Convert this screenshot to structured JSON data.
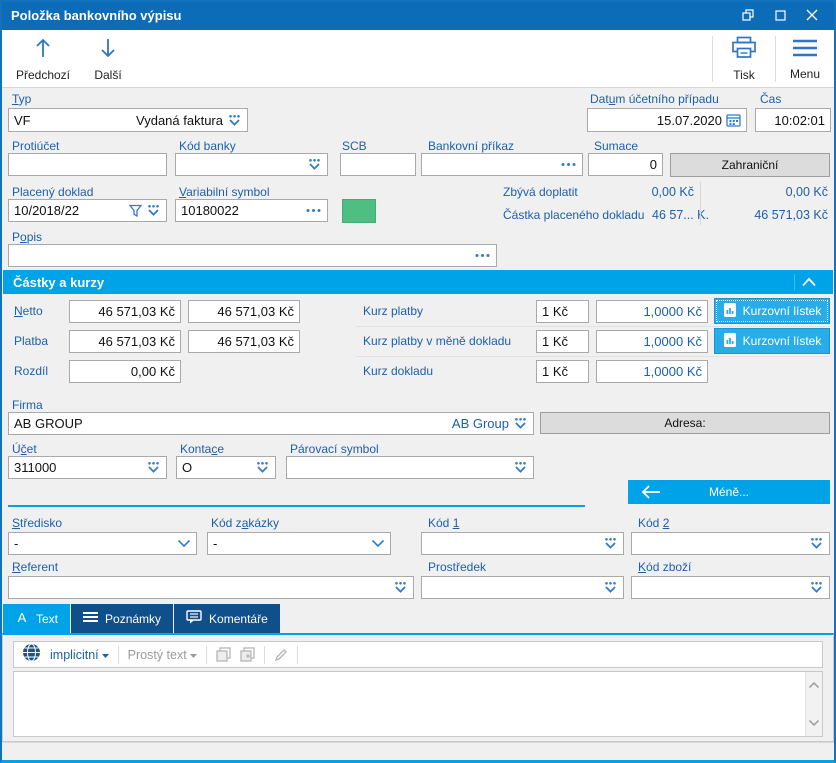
{
  "window": {
    "title": "Položka bankovního výpisu"
  },
  "toolbar": {
    "prev_label": "Předchozí",
    "next_label": "Další",
    "print_label": "Tisk",
    "menu_label": "Menu"
  },
  "form": {
    "typ": {
      "label": "&Typ",
      "code": "VF",
      "name": "Vydaná faktura"
    },
    "datum": {
      "label": "Dat&um účetního případu",
      "value": "15.07.2020"
    },
    "cas": {
      "label": "Čas",
      "value": "10:02:01"
    },
    "protiucet": {
      "label": "Protiúčet",
      "value": ""
    },
    "kod_banky": {
      "label": "Kód banky",
      "value": ""
    },
    "scb": {
      "label": "SCB",
      "value": ""
    },
    "bankovni_prikaz": {
      "label": "Bankovní příkaz",
      "value": ""
    },
    "sumace": {
      "label": "Sumace",
      "value": "0"
    },
    "zahranici_button": "Zahraniční",
    "placeny_doklad": {
      "label": "Placený doklad",
      "value": "10/2018/22"
    },
    "variabilni_symbol": {
      "label": "&Variabilní symbol",
      "value": "10180022"
    },
    "zbyva_doplatit": {
      "label": "Zbývá doplatit",
      "value": "0,00 Kč",
      "value_right": "0,00 Kč"
    },
    "castka_placeneho": {
      "label": "Částka placeného dokladu",
      "value": "46 57... K.",
      "value_right": "46 571,03 Kč"
    },
    "popis": {
      "label": "P&opis",
      "value": ""
    }
  },
  "amounts": {
    "section_title": "Částky a kurzy",
    "netto": {
      "label": "&Netto",
      "value1": "46 571,03 Kč",
      "value2": "46 571,03 Kč"
    },
    "platba": {
      "label": "Platba",
      "value1": "46 571,03 Kč",
      "value2": "46 571,03 Kč"
    },
    "rozdil": {
      "label": "Rozdíl",
      "value": "0,00 Kč"
    },
    "kurz_platby": {
      "label": "Kurz platby",
      "unit": "1 Kč",
      "rate": "1,0000 Kč"
    },
    "kurz_platby_mena": {
      "label": "Kurz platby v měně dokladu",
      "unit": "1 Kč",
      "rate": "1,0000 Kč"
    },
    "kurz_dokladu": {
      "label": "Kurz dokladu",
      "unit": "1 Kč",
      "rate": "1,0000 Kč"
    },
    "kurzovni_listek_button": "Kurzovní lístek"
  },
  "firma": {
    "label": "Firma",
    "value": "AB GROUP",
    "link": "AB Group",
    "adresa_label": "Adresa:"
  },
  "uctovani": {
    "ucet": {
      "label": "Ú&čet",
      "value": "311000"
    },
    "kontace": {
      "label": "Konta&ce",
      "value": "O"
    },
    "parovaci_symbol": {
      "label": "Párovací symbol",
      "value": ""
    },
    "mene_button": "Méně..."
  },
  "kody": {
    "stredisko": {
      "label": "&Středisko",
      "value": "-"
    },
    "kod_zakazky": {
      "label": "Kód z&akázky",
      "value": "-"
    },
    "kod1": {
      "label": "Kód &1",
      "value": ""
    },
    "kod2": {
      "label": "Kód &2",
      "value": ""
    },
    "referent": {
      "label": "&Referent",
      "value": ""
    },
    "prostredek": {
      "label": "Prostředek",
      "value": ""
    },
    "kod_zbozi": {
      "label": "&Kód zboží",
      "value": ""
    }
  },
  "tabs": {
    "text": "Text",
    "poznamky": "Poznámky",
    "komentare": "Komentáře"
  },
  "text_tab": {
    "language": "implicitní",
    "format": "Prostý text",
    "content": ""
  },
  "colors": {
    "accent": "#00a3e8",
    "title_bar": "#0c6cb8",
    "label_blue": "#1d5fab",
    "tab_dark": "#0f4f8a",
    "button_cyan": "#28ade8",
    "green_indicator": "#4fbe82"
  }
}
